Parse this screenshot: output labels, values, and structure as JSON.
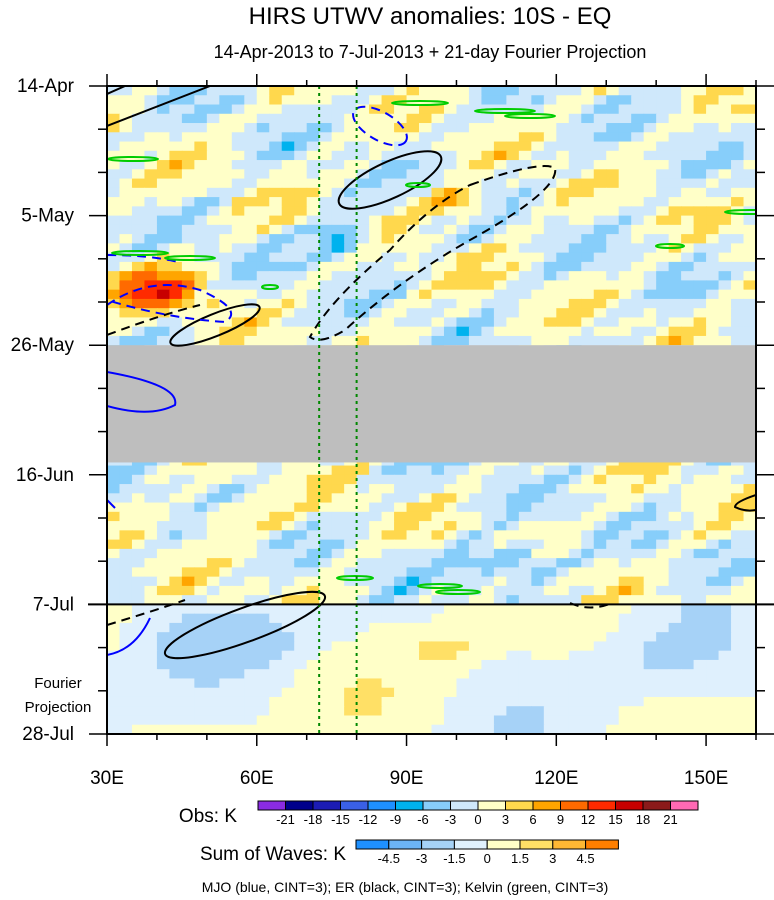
{
  "chart_data": {
    "type": "heatmap",
    "title": "HIRS UTWV anomalies: 10S - EQ",
    "subtitle": "14-Apr-2013 to 7-Jul-2013 + 21-day Fourier Projection",
    "x_ticks": [
      {
        "value": 30,
        "label": "30E"
      },
      {
        "value": 60,
        "label": "60E"
      },
      {
        "value": 90,
        "label": "90E"
      },
      {
        "value": 120,
        "label": "120E"
      },
      {
        "value": 150,
        "label": "150E"
      }
    ],
    "xlim": [
      30,
      160
    ],
    "y_ticks": [
      {
        "day": 0,
        "label": "14-Apr"
      },
      {
        "day": 21,
        "label": "5-May"
      },
      {
        "day": 42,
        "label": "26-May"
      },
      {
        "day": 63,
        "label": "16-Jun"
      },
      {
        "day": 84,
        "label": "7-Jul"
      },
      {
        "day": 105,
        "label": "28-Jul"
      }
    ],
    "ylim_days": [
      0,
      105
    ],
    "observation_end_day": 84,
    "missing_data_days": [
      42,
      61
    ],
    "projection_label_lines": [
      "Fourier",
      "Projection"
    ],
    "reference_longitudes": [
      72.5,
      80
    ],
    "obs_legend": {
      "label": "Obs: K",
      "levels": [
        "-21",
        "-18",
        "-15",
        "-12",
        "-9",
        "-6",
        "-3",
        "0",
        "3",
        "6",
        "9",
        "12",
        "15",
        "18",
        "21"
      ],
      "colors": [
        "#8a2be2",
        "#00008b",
        "#1c1cb4",
        "#3a60e6",
        "#1e90ff",
        "#00b2ee",
        "#87cefa",
        "#cfe8fb",
        "#ffffc8",
        "#ffd84d",
        "#ffa500",
        "#ff6a00",
        "#ff2a00",
        "#c80000",
        "#8b1a1a",
        "#ff69b4"
      ]
    },
    "waves_legend": {
      "label": "Sum of Waves: K",
      "levels": [
        "-4.5",
        "-3",
        "-1.5",
        "0",
        "1.5",
        "3",
        "4.5"
      ],
      "colors": [
        "#1e90ff",
        "#6cb4f5",
        "#a6d2f7",
        "#dff0fd",
        "#ffffc8",
        "#ffe066",
        "#ffb833",
        "#ff7f00"
      ]
    },
    "footnote": "MJO (blue, CINT=3); ER (black, CINT=3); Kelvin (green, CINT=3)",
    "colors": {
      "missing": "#bebebe",
      "mjo": "#0000ff",
      "er": "#000000",
      "kelvin": "#00cc00",
      "reference_line": "#008800"
    }
  }
}
